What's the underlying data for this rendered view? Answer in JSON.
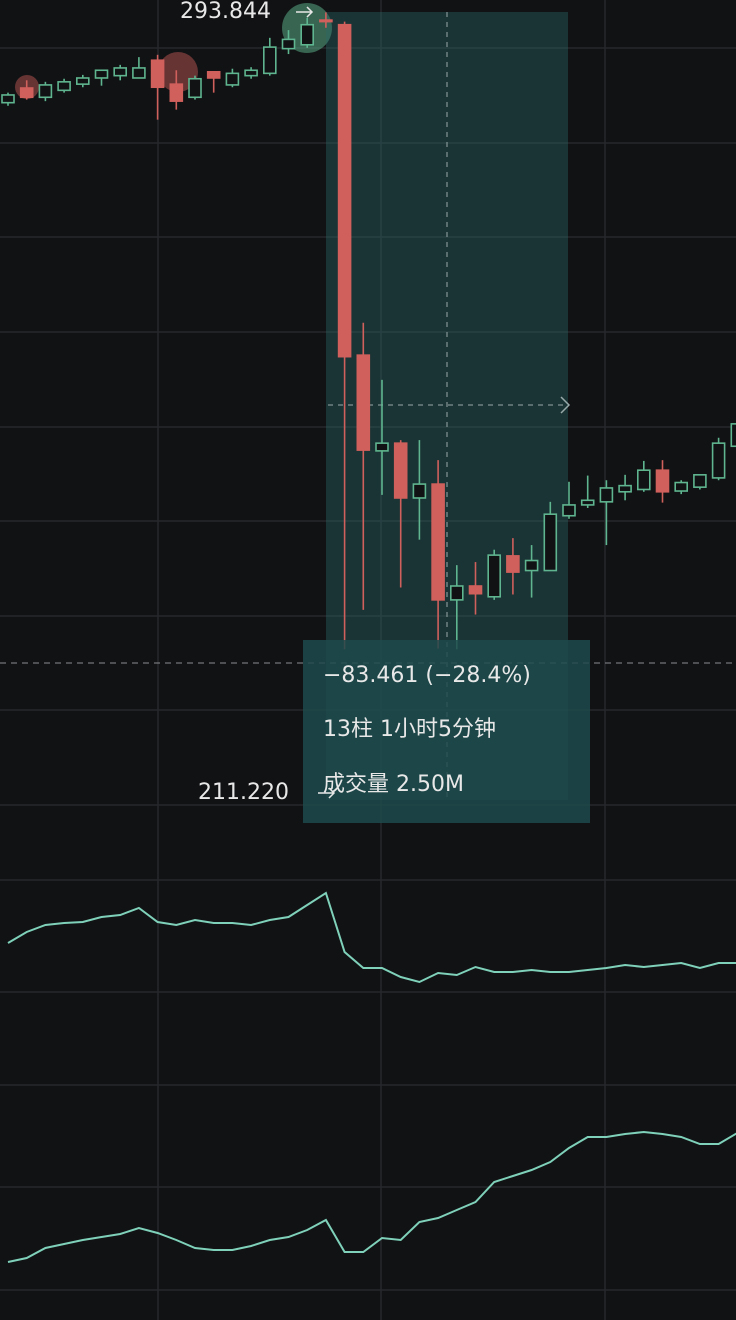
{
  "chart_data": [
    {
      "type": "candlestick",
      "up_color": "#5fb58f",
      "down_color": "#d0605c",
      "ylim": [
        186.6,
        295.4
      ],
      "open": [
        282.1,
        284.0,
        282.8,
        283.7,
        284.5,
        285.3,
        285.6,
        285.3,
        287.6,
        284.5,
        282.8,
        286.1,
        284.4,
        285.6,
        285.9,
        289.1,
        289.6,
        292.8,
        292.2,
        249.4,
        237.0,
        238.0,
        230.9,
        232.7,
        217.7,
        219.5,
        218.1,
        223.4,
        221.5,
        221.5,
        228.6,
        230.0,
        230.4,
        231.7,
        232.0,
        234.5,
        231.8,
        232.3,
        233.5,
        237.6
      ],
      "high": [
        283.4,
        285.0,
        284.8,
        285.2,
        285.7,
        286.3,
        287.0,
        288.0,
        288.3,
        286.3,
        285.6,
        286.1,
        286.5,
        286.7,
        290.5,
        291.5,
        293.1,
        293.8,
        292.6,
        253.6,
        246.2,
        238.4,
        238.4,
        235.8,
        222.2,
        222.6,
        224.2,
        225.7,
        224.8,
        230.4,
        233.0,
        233.8,
        233.2,
        233.9,
        235.7,
        235.8,
        233.2,
        233.9,
        238.7,
        243.9
      ],
      "low": [
        281.7,
        282.5,
        282.3,
        283.4,
        284.1,
        284.3,
        285.0,
        285.3,
        279.9,
        281.2,
        282.5,
        283.4,
        284.1,
        285.2,
        285.6,
        288.4,
        289.2,
        291.8,
        211.3,
        216.4,
        231.3,
        219.3,
        225.5,
        211.4,
        211.3,
        215.8,
        217.7,
        218.4,
        218.0,
        221.8,
        228.2,
        229.6,
        224.8,
        230.6,
        231.7,
        230.3,
        231.4,
        232.0,
        233.2,
        237.1
      ],
      "close": [
        283.1,
        282.8,
        284.4,
        284.8,
        285.3,
        286.3,
        286.6,
        286.6,
        284.1,
        282.3,
        285.2,
        285.3,
        285.9,
        286.3,
        289.3,
        290.3,
        292.2,
        292.6,
        249.2,
        237.1,
        238.0,
        230.9,
        232.7,
        217.7,
        219.5,
        218.5,
        223.5,
        221.3,
        222.8,
        228.8,
        230.0,
        230.6,
        232.2,
        232.5,
        234.5,
        231.7,
        232.9,
        233.9,
        238.0,
        240.5
      ],
      "high_label": 293.844,
      "low_label": {
        "value": 211.22,
        "label": "211.220"
      },
      "measure": {
        "change": "−83.461 (−28.4%)",
        "bars": "13柱 1小时5分钟",
        "volume": "成交量 2.50M"
      }
    },
    {
      "type": "line",
      "color": "#7fd1b9",
      "ylim": [
        0,
        100
      ],
      "values": [
        53.5,
        59,
        62.5,
        63.5,
        64,
        66.5,
        67.5,
        71,
        64,
        62.5,
        65,
        63.5,
        63.5,
        62.5,
        65,
        66.5,
        72.5,
        78.5,
        49,
        41,
        41,
        36.5,
        34,
        38.5,
        37.5,
        41.5,
        39,
        39,
        40,
        39,
        39,
        40,
        41,
        42.5,
        41.5,
        42.5,
        43.5,
        41,
        43.5,
        43.5
      ]
    },
    {
      "type": "line",
      "color": "#7fd1b9",
      "ylim": [
        0,
        110
      ],
      "values": [
        24,
        26,
        31,
        33,
        35,
        36.5,
        38,
        41,
        38.5,
        35,
        31,
        30,
        30,
        32,
        35,
        36.5,
        40,
        45,
        29,
        29,
        36,
        35,
        44,
        46,
        50,
        54,
        64,
        67,
        70,
        74,
        81,
        86.5,
        86.5,
        88,
        89,
        88,
        86.5,
        83,
        83,
        88.5
      ]
    }
  ]
}
